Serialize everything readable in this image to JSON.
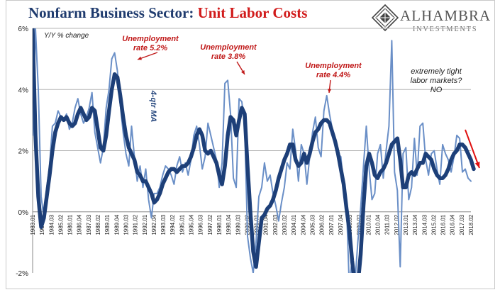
{
  "header": {
    "title_main": "Nonfarm Business Sector:",
    "title_accent": "Unit Labor Costs",
    "colors": {
      "title": "#1f3b6e",
      "accent": "#d11a1a"
    }
  },
  "logo": {
    "name": "ALHAMBRA",
    "sub": "INVESTMENTS"
  },
  "chart_data": {
    "type": "line",
    "title": "Nonfarm Business Sector: Unit Labor Costs",
    "ylabel": "Y/Y % change",
    "ylim": [
      -2,
      6
    ],
    "yticks": [
      "6%",
      "4%",
      "2%",
      "0%",
      "-2%"
    ],
    "ytick_values": [
      6,
      4,
      2,
      0,
      -2
    ],
    "grid": true,
    "xtick_labels": [
      "1983.01",
      "1983.04",
      "1984.03",
      "1985.02",
      "1986.01",
      "1986.04",
      "1987.03",
      "1988.02",
      "1989.01",
      "1989.04",
      "1990.03",
      "1991.02",
      "1992.01",
      "1992.04",
      "1993.03",
      "1994.02",
      "1995.01",
      "1995.04",
      "1996.03",
      "1997.02",
      "1998.01",
      "1998.04",
      "1999.03",
      "2000.02",
      "2001.01",
      "2001.04",
      "2002.03",
      "2003.02",
      "2004.01",
      "2004.04",
      "2005.03",
      "2006.02",
      "2007.01",
      "2007.04",
      "2008.03",
      "2009.02",
      "2010.01",
      "2010.04",
      "2011.03",
      "2012.02",
      "2013.01",
      "2013.04",
      "2014.03",
      "2015.02",
      "2016.01",
      "2016.04",
      "2017.03",
      "2018.02"
    ],
    "series": [
      {
        "name": "",
        "color": "#6a8fc7",
        "values": [
          2.5,
          6.0,
          4.0,
          0.5,
          -0.2,
          0.8,
          1.5,
          2.8,
          2.9,
          3.3,
          3.1,
          3.0,
          3.2,
          2.7,
          2.9,
          3.4,
          3.7,
          3.2,
          2.9,
          3.1,
          3.4,
          3.9,
          2.6,
          2.1,
          1.6,
          2.1,
          3.4,
          4.0,
          5.0,
          5.2,
          4.6,
          3.5,
          2.6,
          1.9,
          1.5,
          2.8,
          1.8,
          1.0,
          1.5,
          0.8,
          1.4,
          0.4,
          -0.2,
          0.6,
          0.6,
          0.8,
          1.2,
          1.5,
          1.4,
          1.2,
          0.9,
          1.5,
          1.8,
          1.3,
          1.6,
          1.2,
          1.7,
          2.5,
          2.8,
          2.2,
          1.4,
          1.8,
          2.9,
          2.5,
          2.1,
          1.7,
          0.8,
          1.6,
          4.2,
          4.3,
          3.2,
          1.1,
          0.8,
          3.7,
          3.6,
          2.8,
          -0.8,
          -1.5,
          -2.0,
          -1.0,
          0.5,
          0.8,
          1.6,
          1.0,
          1.2,
          0.6,
          0.2,
          -0.3,
          0.3,
          0.8,
          1.6,
          1.4,
          2.7,
          2.0,
          1.0,
          2.2,
          1.9,
          0.9,
          1.8,
          2.6,
          3.1,
          2.1,
          1.8,
          3.3,
          3.8,
          3.2,
          2.7,
          2.4,
          1.9,
          1.8,
          0.8,
          0.2,
          -2.5,
          -1.5,
          -2.3,
          -1.0,
          0.1,
          1.5,
          2.8,
          1.4,
          0.4,
          0.6,
          1.9,
          2.2,
          1.1,
          2.0,
          2.8,
          5.6,
          1.3,
          0.7,
          -1.8,
          1.9,
          2.1,
          0.4,
          0.8,
          2.4,
          1.2,
          2.8,
          2.9,
          1.7,
          1.2,
          1.9,
          2.0,
          1.4,
          0.9,
          2.2,
          1.9,
          1.7,
          1.3,
          1.8,
          2.5,
          2.4,
          1.3,
          1.4,
          1.1,
          1.0
        ]
      },
      {
        "name": "4-qtr MA",
        "color": "#1d3f78",
        "values": [
          6.0,
          2.5,
          0.5,
          -0.5,
          -0.2,
          0.5,
          1.2,
          2.0,
          2.6,
          2.9,
          3.1,
          3.0,
          3.1,
          2.9,
          2.8,
          2.9,
          3.2,
          3.4,
          3.2,
          3.0,
          3.1,
          3.4,
          3.3,
          2.7,
          2.1,
          2.0,
          2.5,
          3.3,
          4.0,
          4.5,
          4.4,
          3.8,
          3.1,
          2.5,
          2.1,
          1.9,
          1.7,
          1.3,
          1.2,
          1.0,
          1.0,
          0.8,
          0.6,
          0.3,
          0.4,
          0.6,
          0.9,
          1.1,
          1.3,
          1.4,
          1.4,
          1.3,
          1.4,
          1.5,
          1.5,
          1.6,
          1.8,
          2.1,
          2.5,
          2.7,
          2.5,
          2.0,
          1.9,
          2.0,
          1.8,
          1.6,
          1.2,
          0.9,
          1.5,
          2.5,
          3.1,
          3.0,
          2.5,
          3.0,
          3.4,
          3.2,
          1.5,
          0.0,
          -1.3,
          -1.8,
          -1.0,
          -0.2,
          -0.1,
          0.1,
          0.2,
          0.4,
          0.7,
          1.1,
          1.4,
          1.7,
          1.9,
          2.2,
          2.2,
          1.7,
          1.5,
          1.6,
          1.9,
          1.6,
          1.9,
          2.3,
          2.6,
          2.7,
          2.9,
          3.0,
          3.0,
          2.9,
          2.6,
          2.3,
          1.9,
          1.4,
          0.9,
          0.1,
          -0.6,
          -1.6,
          -2.4,
          -2.4,
          -1.4,
          0.2,
          1.5,
          1.9,
          1.6,
          1.2,
          1.1,
          1.3,
          1.4,
          1.6,
          1.9,
          2.2,
          2.3,
          2.4,
          1.7,
          0.8,
          0.8,
          1.2,
          1.3,
          1.2,
          1.4,
          1.6,
          1.6,
          1.9,
          1.8,
          1.7,
          1.4,
          1.2,
          1.1,
          1.1,
          1.2,
          1.4,
          1.7,
          1.9,
          2.0,
          2.2,
          2.2,
          2.1,
          1.9,
          1.7,
          1.4
        ]
      }
    ],
    "annotations": [
      {
        "id": "u52",
        "lines": [
          "Unemployment",
          "rate 5.2%"
        ],
        "color": "#c01818"
      },
      {
        "id": "u38",
        "lines": [
          "Unemployment",
          "rate 3.8%"
        ],
        "color": "#c01818"
      },
      {
        "id": "u44",
        "lines": [
          "Unemployment",
          "rate 4.4%"
        ],
        "color": "#c01818"
      },
      {
        "id": "tight",
        "lines": [
          "extremely tight",
          "labor markets?",
          "NO"
        ],
        "color": "#222222"
      },
      {
        "id": "ma",
        "lines": [
          "4-qtr MA"
        ],
        "color": "#1d3f78"
      }
    ]
  }
}
